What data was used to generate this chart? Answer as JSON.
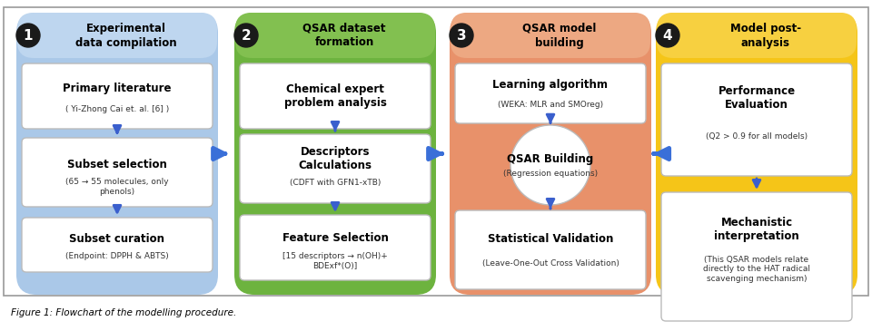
{
  "figure_bg": "#ffffff",
  "caption": "Figure 1: Flowchart of the modelling procedure.",
  "columns": [
    {
      "number": "1",
      "title": "Experimental\ndata compilation",
      "bg_color": "#aac8e8",
      "header_bg": "#bed6ef",
      "boxes": [
        {
          "main": "Primary literature",
          "sub": "( Yi-Zhong Cai et. al. [6] )"
        },
        {
          "main": "Subset selection",
          "sub": "(65 → 55 molecules, only\nphenols)"
        },
        {
          "main": "Subset curation",
          "sub": "(Endpoint: DPPH & ABTS)"
        }
      ],
      "has_circle": false
    },
    {
      "number": "2",
      "title": "QSAR dataset\nformation",
      "bg_color": "#6db33f",
      "header_bg": "#82c050",
      "boxes": [
        {
          "main": "Chemical expert\nproblem analysis",
          "sub": ""
        },
        {
          "main": "Descriptors\nCalculations",
          "sub": "(CDFT with GFN1-xTB)"
        },
        {
          "main": "Feature Selection",
          "sub": "[15 descriptors → n(OH)+\nBDExf*(O)]"
        }
      ],
      "has_circle": false
    },
    {
      "number": "3",
      "title": "QSAR model\nbuilding",
      "bg_color": "#e8916a",
      "header_bg": "#eda882",
      "boxes": [
        {
          "main": "Learning algorithm",
          "sub": "(WEKA: MLR and SMOreg)"
        },
        {
          "main": "QSAR Building",
          "sub": "(Regression equations)",
          "is_circle": true
        },
        {
          "main": "Statistical Validation",
          "sub": "(Leave-One-Out Cross Validation)"
        }
      ],
      "has_circle": true
    },
    {
      "number": "4",
      "title": "Model post-\nanalysis",
      "bg_color": "#f5c518",
      "header_bg": "#f7d040",
      "boxes": [
        {
          "main": "Performance\nEvaluation",
          "sub": "(Q2 > 0.9 for all models)"
        },
        {
          "main": "Mechanistic\ninterpretation",
          "sub": "(This QSAR models relate\ndirectly to the HAT radical\nscavenging mechanism)"
        }
      ],
      "has_circle": false
    }
  ],
  "arrow_color": "#3a5fcd",
  "inter_arrow_color": "#3a6fd8"
}
